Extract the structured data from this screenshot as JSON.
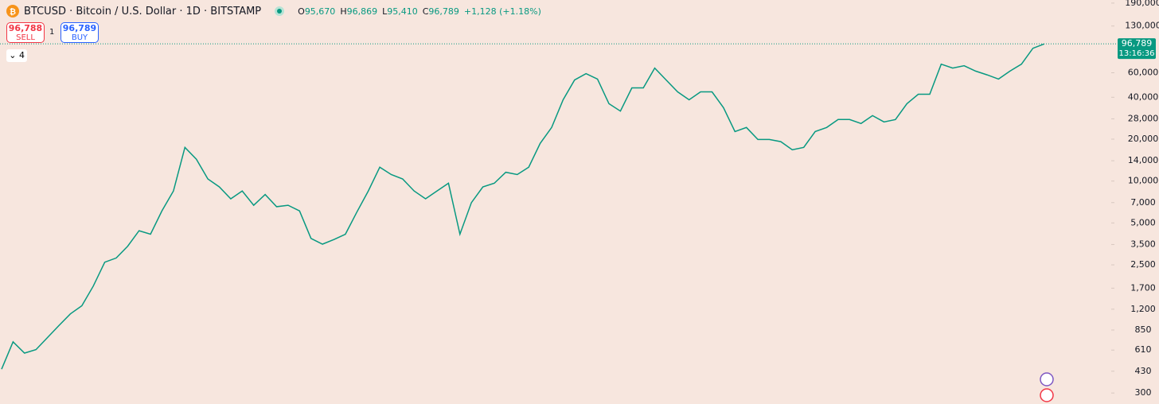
{
  "header": {
    "title": "BTCUSD · Bitcoin / U.S. Dollar · 1D · BITSTAMP",
    "ohlc": [
      {
        "key": "O",
        "value": "95,670"
      },
      {
        "key": "H",
        "value": "96,869"
      },
      {
        "key": "L",
        "value": "95,410"
      },
      {
        "key": "C",
        "value": "96,789"
      }
    ],
    "change": "+1,128 (+1.18%)"
  },
  "trade": {
    "sell_price": "96,788",
    "sell_label": "SELL",
    "quantity": "1",
    "buy_price": "96,789",
    "buy_label": "BUY"
  },
  "indicators_count": "4",
  "chart_data": {
    "type": "line",
    "color": "#089981",
    "log_scale": true,
    "values": [
      445,
      700,
      580,
      615,
      750,
      915,
      1110,
      1270,
      1760,
      2610,
      2800,
      3400,
      4400,
      4150,
      6120,
      8490,
      17460,
      14350,
      10350,
      9080,
      7450,
      8490,
      6700,
      8000,
      6540,
      6700,
      6100,
      3870,
      3520,
      3800,
      4150,
      5980,
      8490,
      12590,
      11140,
      10350,
      8490,
      7450,
      8490,
      9640,
      4150,
      7000,
      9080,
      9640,
      11570,
      11140,
      12590,
      18660,
      24260,
      38370,
      53220,
      59150,
      54100,
      35970,
      31800,
      46700,
      46700,
      64860,
      53220,
      43750,
      38370,
      43750,
      43750,
      33650,
      22700,
      24260,
      19900,
      19900,
      19200,
      16790,
      17460,
      22700,
      24260,
      27670,
      27670,
      25900,
      29500,
      26600,
      27670,
      35970,
      42070,
      42070,
      69200,
      64860,
      67400,
      61700,
      58000,
      54100,
      61700,
      69200,
      90000,
      96789
    ],
    "ylim": [
      250,
      200000
    ],
    "yticks": [
      300,
      430,
      610,
      850,
      {
        "value": 1200,
        "label": "1,200"
      },
      {
        "value": 1700,
        "label": "1,700"
      },
      {
        "value": 2500,
        "label": "2,500"
      },
      {
        "value": 3500,
        "label": "3,500"
      },
      {
        "value": 5000,
        "label": "5,000"
      },
      {
        "value": 7000,
        "label": "7,000"
      },
      {
        "value": 10000,
        "label": "10,000"
      },
      {
        "value": 14000,
        "label": "14,000"
      },
      {
        "value": 20000,
        "label": "20,000"
      },
      {
        "value": 28000,
        "label": "28,000"
      },
      {
        "value": 40000,
        "label": "40,000"
      },
      {
        "value": 60000,
        "label": "60,000"
      },
      {
        "value": 130000,
        "label": "130,000"
      },
      {
        "value": 190000,
        "label": "190,000"
      }
    ],
    "last_price": {
      "value": 96789,
      "label": "96,789"
    },
    "countdown": "13:16:36"
  }
}
